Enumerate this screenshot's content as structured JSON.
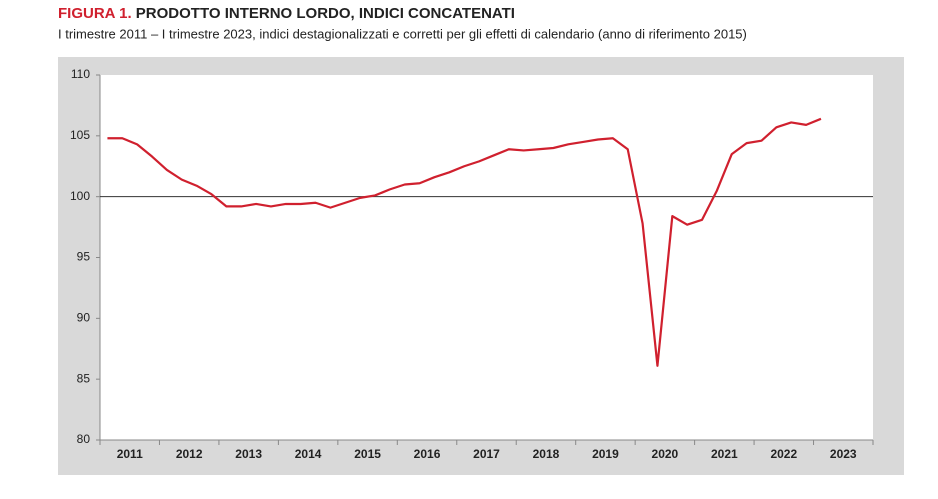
{
  "chart_data": {
    "type": "line",
    "title_label": "FIGURA 1.",
    "title": "PRODOTTO INTERNO LORDO, INDICI CONCATENATI",
    "subtitle": "I trimestre 2011 – I trimestre 2023, indici destagionalizzati e corretti per gli effetti di calendario (anno di riferimento 2015)",
    "categories": [
      "2011",
      null,
      null,
      null,
      "2012",
      null,
      null,
      null,
      "2013",
      null,
      null,
      null,
      "2014",
      null,
      null,
      null,
      "2015",
      null,
      null,
      null,
      "2016",
      null,
      null,
      null,
      "2017",
      null,
      null,
      null,
      "2018",
      null,
      null,
      null,
      "2019",
      null,
      null,
      null,
      "2020",
      null,
      null,
      null,
      "2021",
      null,
      null,
      null,
      "2022",
      null,
      null,
      null,
      "2023"
    ],
    "values": [
      104.8,
      104.8,
      104.3,
      103.3,
      102.2,
      101.4,
      100.9,
      100.2,
      99.2,
      99.2,
      99.4,
      99.2,
      99.4,
      99.4,
      99.5,
      99.1,
      99.5,
      99.9,
      100.1,
      100.6,
      101.0,
      101.1,
      101.6,
      102.0,
      102.5,
      102.9,
      103.4,
      103.9,
      103.8,
      103.9,
      104.0,
      104.3,
      104.5,
      104.7,
      104.8,
      103.9,
      97.8,
      86.1,
      98.4,
      97.7,
      98.1,
      100.5,
      103.5,
      104.4,
      104.6,
      105.7,
      106.1,
      105.9,
      106.4
    ],
    "color": "#d0202e",
    "ylim": [
      80,
      110
    ],
    "yticks": [
      80,
      85,
      90,
      95,
      100,
      105,
      110
    ],
    "reference_line": 100,
    "grid": false
  }
}
